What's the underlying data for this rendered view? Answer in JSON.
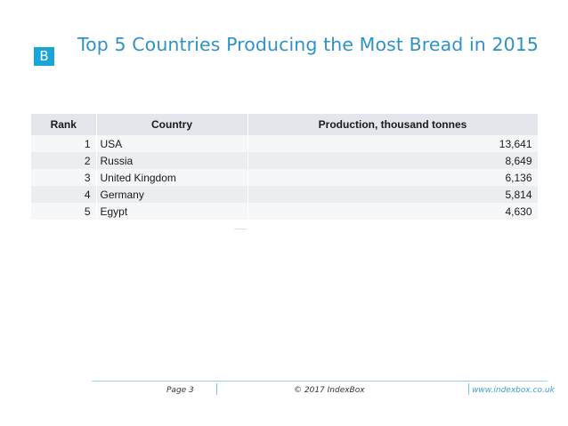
{
  "logo": {
    "letter": "B",
    "color": "#1aa5d8"
  },
  "slide": {
    "title": "Top 5 Countries Producing the Most Bread in 2015"
  },
  "table": {
    "headers": [
      "Rank",
      "Country",
      "Production, thousand tonnes"
    ],
    "rows": [
      {
        "rank": "1",
        "country": "USA",
        "value": "13,641"
      },
      {
        "rank": "2",
        "country": "Russia",
        "value": "8,649"
      },
      {
        "rank": "3",
        "country": "United Kingdom",
        "value": "6,136"
      },
      {
        "rank": "4",
        "country": "Germany",
        "value": "5,814"
      },
      {
        "rank": "5",
        "country": "Egypt",
        "value": "4,630"
      }
    ]
  },
  "footer": {
    "page": "Page 3",
    "copyright": "© 2017 IndexBox",
    "url": "www.indexbox.co.uk"
  },
  "colors": {
    "title": "#2f93c6",
    "accent_line": "#9fd3ea",
    "header_bg": "#e3e6ea"
  }
}
